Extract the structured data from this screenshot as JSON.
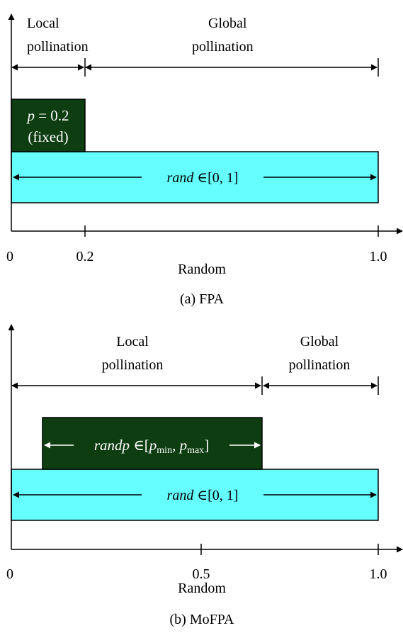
{
  "colors": {
    "cyan": "#66ffff",
    "dark_green": "#0d3d10",
    "black": "#000000",
    "white": "#ffffff"
  },
  "panel_a": {
    "region_local_l1": "Local",
    "region_local_l2": "pollination",
    "region_global_l1": "Global",
    "region_global_l2": "pollination",
    "p_var": "p",
    "p_eq": " = 0.2",
    "p_fixed": "(fixed)",
    "rand_var": "rand",
    "rand_rest": " ∈[0, 1]",
    "tick_0": "0",
    "tick_mid": "0.2",
    "tick_1": "1.0",
    "xlabel": "Random",
    "caption": "(a) FPA"
  },
  "panel_b": {
    "region_local_l1": "Local",
    "region_local_l2": "pollination",
    "region_global_l1": "Global",
    "region_global_l2": "pollination",
    "randp_var": "randp",
    "randp_in": " ∈[",
    "p_min_var": "p",
    "p_min_sub": "min",
    "comma": ", ",
    "p_max_var": "p",
    "p_max_sub": "max",
    "close": "]",
    "rand_var": "rand",
    "rand_rest": " ∈[0, 1]",
    "tick_0": "0",
    "tick_mid": "0.5",
    "tick_1": "1.0",
    "xlabel": "Random",
    "caption": "(b) MoFPA"
  }
}
